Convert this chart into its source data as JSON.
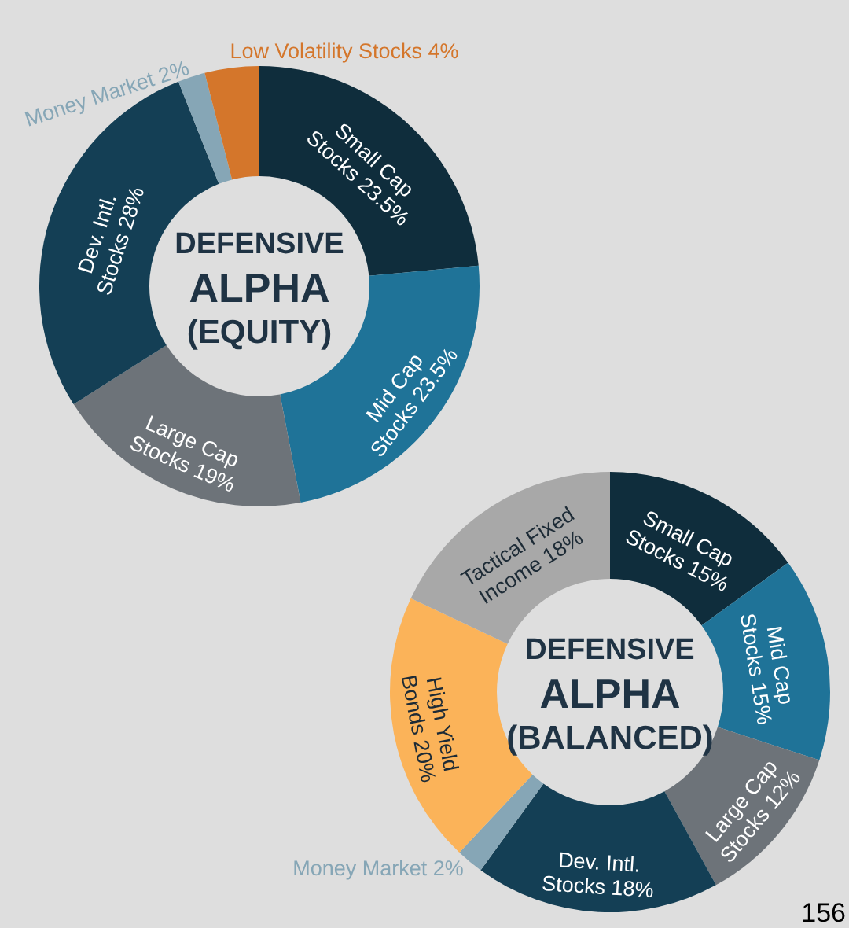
{
  "chart_data": [
    {
      "type": "donut",
      "title": "DEFENSIVE ALPHA (EQUITY)",
      "categories": [
        "Small Cap Stocks",
        "Mid Cap Stocks",
        "Large Cap Stocks",
        "Dev. Intl. Stocks",
        "Money Market",
        "Low Volatility Stocks"
      ],
      "values": [
        23.5,
        23.5,
        19,
        28,
        2,
        4
      ],
      "value_labels": [
        "23.5%",
        "23.5%",
        "19%",
        "28%",
        "2%",
        "4%"
      ],
      "colors": [
        "#0f2d3c",
        "#1f7398",
        "#6d7379",
        "#143f55",
        "#86a6b6",
        "#d4762b"
      ]
    },
    {
      "type": "donut",
      "title": "DEFENSIVE ALPHA (BALANCED)",
      "categories": [
        "Small Cap Stocks",
        "Mid Cap Stocks",
        "Large Cap Stocks",
        "Dev. Intl. Stocks",
        "Money Market",
        "High Yield Bonds",
        "Tactical Fixed Income"
      ],
      "values": [
        15,
        15,
        12,
        18,
        2,
        20,
        18
      ],
      "value_labels": [
        "15%",
        "15%",
        "12%",
        "18%",
        "2%",
        "20%",
        "18%"
      ],
      "colors": [
        "#0f2d3c",
        "#1f7398",
        "#6d7379",
        "#143f55",
        "#86a6b6",
        "#fbb359",
        "#a8a8a8"
      ],
      "annotations": [
        "156"
      ]
    }
  ]
}
